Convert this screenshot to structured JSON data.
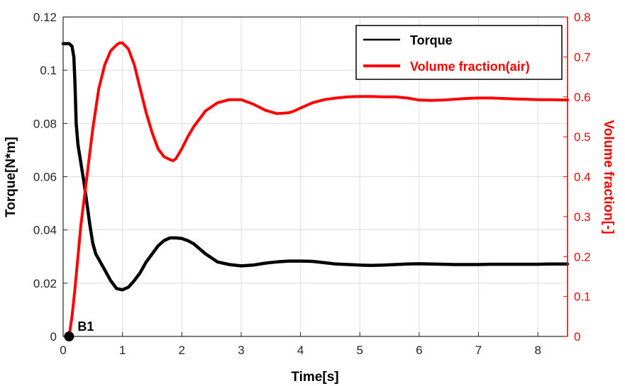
{
  "chart_data": {
    "type": "line",
    "title": "",
    "xlabel": "Time[s]",
    "ylabel": "Torque[N*m]",
    "y2label": "Volume fraction[-]",
    "xlim": [
      0,
      8.5
    ],
    "ylim": [
      0,
      0.12
    ],
    "y2lim": [
      0,
      0.8
    ],
    "grid": true,
    "legend_position": "top-right",
    "x_ticks": [
      "0",
      "1",
      "2",
      "3",
      "4",
      "5",
      "6",
      "7",
      "8"
    ],
    "y_ticks": [
      "0",
      "0.02",
      "0.04",
      "0.06",
      "0.08",
      "0.1",
      "0.12"
    ],
    "y2_ticks": [
      "0",
      "0.1",
      "0.2",
      "0.3",
      "0.4",
      "0.5",
      "0.6",
      "0.7",
      "0.8"
    ],
    "annotation": {
      "label": "B1",
      "x": 0.1,
      "y": 0
    },
    "series": [
      {
        "name": "Torque",
        "axis": "left",
        "color": "#000000",
        "x": [
          0,
          0.1,
          0.15,
          0.18,
          0.2,
          0.22,
          0.25,
          0.3,
          0.35,
          0.4,
          0.45,
          0.5,
          0.55,
          0.6,
          0.7,
          0.8,
          0.9,
          1.0,
          1.1,
          1.2,
          1.3,
          1.4,
          1.5,
          1.6,
          1.7,
          1.8,
          1.9,
          2.0,
          2.1,
          2.2,
          2.4,
          2.6,
          2.8,
          3.0,
          3.2,
          3.4,
          3.6,
          3.8,
          4.0,
          4.2,
          4.4,
          4.6,
          4.8,
          5.0,
          5.2,
          5.4,
          5.6,
          5.8,
          6.0,
          6.2,
          6.4,
          6.6,
          6.8,
          7.0,
          7.2,
          7.4,
          7.6,
          7.8,
          8.0,
          8.2,
          8.5
        ],
        "values": [
          0.11,
          0.11,
          0.109,
          0.105,
          0.095,
          0.08,
          0.072,
          0.065,
          0.058,
          0.05,
          0.042,
          0.035,
          0.031,
          0.029,
          0.025,
          0.021,
          0.018,
          0.0175,
          0.0185,
          0.021,
          0.024,
          0.028,
          0.031,
          0.034,
          0.036,
          0.037,
          0.037,
          0.0368,
          0.036,
          0.0348,
          0.031,
          0.028,
          0.027,
          0.0265,
          0.0268,
          0.0275,
          0.028,
          0.0283,
          0.0283,
          0.0282,
          0.0277,
          0.0272,
          0.027,
          0.0268,
          0.0267,
          0.0268,
          0.027,
          0.0272,
          0.0273,
          0.0272,
          0.0271,
          0.027,
          0.027,
          0.027,
          0.0271,
          0.0271,
          0.0271,
          0.0271,
          0.0271,
          0.0272,
          0.0272
        ]
      },
      {
        "name": "Volume fraction(air)",
        "axis": "right",
        "color": "#ff0000",
        "x": [
          0.1,
          0.15,
          0.2,
          0.25,
          0.3,
          0.35,
          0.4,
          0.45,
          0.5,
          0.55,
          0.6,
          0.7,
          0.8,
          0.9,
          0.95,
          1.0,
          1.1,
          1.2,
          1.3,
          1.4,
          1.5,
          1.6,
          1.7,
          1.8,
          1.85,
          1.9,
          2.0,
          2.1,
          2.2,
          2.4,
          2.6,
          2.8,
          3.0,
          3.2,
          3.4,
          3.6,
          3.8,
          3.9,
          4.0,
          4.2,
          4.4,
          4.6,
          4.8,
          5.0,
          5.2,
          5.4,
          5.6,
          5.8,
          6.0,
          6.2,
          6.4,
          6.6,
          6.8,
          7.0,
          7.2,
          7.4,
          7.6,
          7.8,
          8.0,
          8.2,
          8.5
        ],
        "values": [
          0.0,
          0.05,
          0.12,
          0.2,
          0.28,
          0.34,
          0.4,
          0.46,
          0.52,
          0.57,
          0.62,
          0.68,
          0.715,
          0.73,
          0.735,
          0.735,
          0.72,
          0.68,
          0.62,
          0.56,
          0.51,
          0.47,
          0.45,
          0.443,
          0.44,
          0.445,
          0.47,
          0.5,
          0.525,
          0.565,
          0.585,
          0.593,
          0.593,
          0.582,
          0.567,
          0.558,
          0.56,
          0.565,
          0.572,
          0.585,
          0.593,
          0.597,
          0.6,
          0.601,
          0.601,
          0.6,
          0.6,
          0.597,
          0.592,
          0.591,
          0.592,
          0.594,
          0.596,
          0.597,
          0.597,
          0.596,
          0.595,
          0.594,
          0.593,
          0.593,
          0.592
        ]
      }
    ]
  }
}
